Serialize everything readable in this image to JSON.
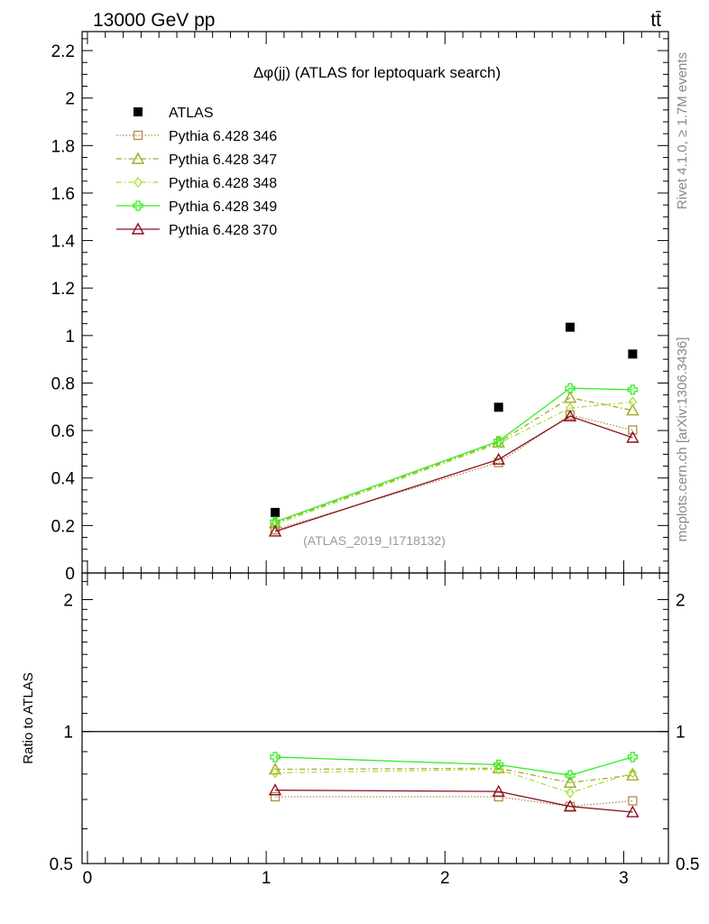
{
  "header": {
    "left": "13000 GeV pp",
    "right": "tt̄"
  },
  "side_labels": {
    "rivet": "Rivet 4.1.0, ≥ 1.7M events",
    "mcplots": "mcplots.cern.ch [arXiv:1306.3436]"
  },
  "chart_data": {
    "type": "scatter",
    "title": "Δφ(jj) (ATLAS for leptoquark search)",
    "watermark": "(ATLAS_2019_I1718132)",
    "xlabel": "",
    "ylabel": "",
    "ratio_ylabel": "Ratio to ATLAS",
    "xlim": [
      -0.03,
      3.25
    ],
    "ylim": [
      0,
      2.28
    ],
    "ratio_ylim": [
      0.5,
      2.3
    ],
    "x_ticks": [
      "0",
      "1",
      "2",
      "3"
    ],
    "y_ticks": [
      "0",
      "0.2",
      "0.4",
      "0.6",
      "0.8",
      "1",
      "1.2",
      "1.4",
      "1.6",
      "1.8",
      "2",
      "2.2"
    ],
    "ratio_ticks_left": [
      "0.5",
      "1",
      "2"
    ],
    "ratio_ticks_right": [
      "0.5",
      "1",
      "2"
    ],
    "x": [
      1.05,
      2.3,
      2.7,
      3.05
    ],
    "series": [
      {
        "name": "ATLAS",
        "color": "#000000",
        "marker": "square-filled",
        "dash": "",
        "values": [
          0.255,
          0.698,
          1.035,
          0.922
        ]
      },
      {
        "name": "Pythia 6.428 346",
        "color": "#b5894a",
        "marker": "square-open",
        "dash": "1.5,2",
        "values": [
          0.182,
          0.465,
          0.665,
          0.602
        ]
      },
      {
        "name": "Pythia 6.428 347",
        "color": "#a4a82a",
        "marker": "triangle-open",
        "dash": "6,3,1.5,3",
        "values": [
          0.21,
          0.55,
          0.738,
          0.685
        ]
      },
      {
        "name": "Pythia 6.428 348",
        "color": "#a8e03a",
        "marker": "diamond-open",
        "dash": "6,3,1.5,3",
        "values": [
          0.205,
          0.545,
          0.695,
          0.72
        ]
      },
      {
        "name": "Pythia 6.428 349",
        "color": "#33ee22",
        "marker": "cross-open",
        "dash": "",
        "values": [
          0.215,
          0.555,
          0.778,
          0.772
        ]
      },
      {
        "name": "Pythia 6.428 370",
        "color": "#8a1020",
        "marker": "triangle-open",
        "dash": "",
        "values": [
          0.175,
          0.478,
          0.66,
          0.57
        ]
      }
    ],
    "ratio_series": [
      {
        "name": "Pythia 6.428 346",
        "values": [
          0.71,
          0.71,
          0.675,
          0.695
        ]
      },
      {
        "name": "Pythia 6.428 347",
        "values": [
          0.82,
          0.825,
          0.765,
          0.795
        ]
      },
      {
        "name": "Pythia 6.428 348",
        "values": [
          0.805,
          0.82,
          0.725,
          0.805
        ]
      },
      {
        "name": "Pythia 6.428 349",
        "values": [
          0.875,
          0.84,
          0.795,
          0.875
        ]
      },
      {
        "name": "Pythia 6.428 370",
        "values": [
          0.735,
          0.73,
          0.675,
          0.655
        ]
      }
    ]
  }
}
